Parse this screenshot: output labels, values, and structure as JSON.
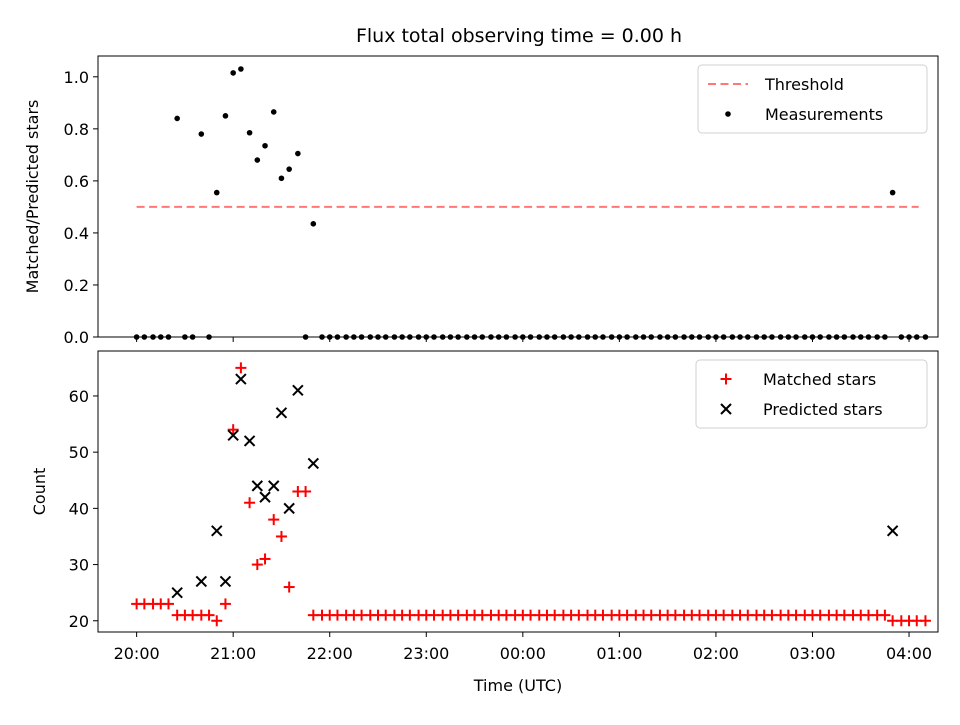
{
  "title": "Flux total observing time = 0.00 h",
  "chart_data": [
    {
      "type": "scatter",
      "panel": "top",
      "ylabel": "Matched/Predicted stars",
      "ylim": [
        0,
        1.08
      ],
      "yticks": [
        "0.0",
        "0.2",
        "0.4",
        "0.6",
        "0.8",
        "1.0"
      ],
      "xlim_hours": [
        19.6,
        28.3
      ],
      "legend_placement": "top-right",
      "threshold": {
        "name": "Threshold",
        "y": 0.5,
        "x": [
          20.0,
          28.1
        ],
        "color": "#ff7777"
      },
      "series": [
        {
          "name": "Measurements",
          "color": "#000000",
          "points": [
            [
              20.0,
              0
            ],
            [
              20.08,
              0
            ],
            [
              20.17,
              0
            ],
            [
              20.25,
              0
            ],
            [
              20.33,
              0
            ],
            [
              20.42,
              0.84
            ],
            [
              20.5,
              0
            ],
            [
              20.58,
              0
            ],
            [
              20.67,
              0.78
            ],
            [
              20.75,
              0
            ],
            [
              20.83,
              0.555
            ],
            [
              20.92,
              0.85
            ],
            [
              21.0,
              1.015
            ],
            [
              21.08,
              1.03
            ],
            [
              21.17,
              0.785
            ],
            [
              21.25,
              0.68
            ],
            [
              21.33,
              0.735
            ],
            [
              21.42,
              0.865
            ],
            [
              21.5,
              0.61
            ],
            [
              21.58,
              0.645
            ],
            [
              21.67,
              0.705
            ],
            [
              21.75,
              0
            ],
            [
              21.83,
              0.435
            ],
            [
              21.92,
              0
            ],
            [
              22.0,
              0
            ],
            [
              22.08,
              0
            ],
            [
              22.17,
              0
            ],
            [
              22.25,
              0
            ],
            [
              22.33,
              0
            ],
            [
              22.42,
              0
            ],
            [
              22.5,
              0
            ],
            [
              22.58,
              0
            ],
            [
              22.67,
              0
            ],
            [
              22.75,
              0
            ],
            [
              22.83,
              0
            ],
            [
              22.92,
              0
            ],
            [
              23.0,
              0
            ],
            [
              23.08,
              0
            ],
            [
              23.17,
              0
            ],
            [
              23.25,
              0
            ],
            [
              23.33,
              0
            ],
            [
              23.42,
              0
            ],
            [
              23.5,
              0
            ],
            [
              23.58,
              0
            ],
            [
              23.67,
              0
            ],
            [
              23.75,
              0
            ],
            [
              23.83,
              0
            ],
            [
              23.92,
              0
            ],
            [
              24.0,
              0
            ],
            [
              24.08,
              0
            ],
            [
              24.17,
              0
            ],
            [
              24.25,
              0
            ],
            [
              24.33,
              0
            ],
            [
              24.42,
              0
            ],
            [
              24.5,
              0
            ],
            [
              24.58,
              0
            ],
            [
              24.67,
              0
            ],
            [
              24.75,
              0
            ],
            [
              24.83,
              0
            ],
            [
              24.92,
              0
            ],
            [
              25.0,
              0
            ],
            [
              25.08,
              0
            ],
            [
              25.17,
              0
            ],
            [
              25.25,
              0
            ],
            [
              25.33,
              0
            ],
            [
              25.42,
              0
            ],
            [
              25.5,
              0
            ],
            [
              25.58,
              0
            ],
            [
              25.67,
              0
            ],
            [
              25.75,
              0
            ],
            [
              25.83,
              0
            ],
            [
              25.92,
              0
            ],
            [
              26.0,
              0
            ],
            [
              26.08,
              0
            ],
            [
              26.17,
              0
            ],
            [
              26.25,
              0
            ],
            [
              26.33,
              0
            ],
            [
              26.42,
              0
            ],
            [
              26.5,
              0
            ],
            [
              26.58,
              0
            ],
            [
              26.67,
              0
            ],
            [
              26.75,
              0
            ],
            [
              26.83,
              0
            ],
            [
              26.92,
              0
            ],
            [
              27.0,
              0
            ],
            [
              27.08,
              0
            ],
            [
              27.17,
              0
            ],
            [
              27.25,
              0
            ],
            [
              27.33,
              0
            ],
            [
              27.42,
              0
            ],
            [
              27.5,
              0
            ],
            [
              27.58,
              0
            ],
            [
              27.67,
              0
            ],
            [
              27.75,
              0
            ],
            [
              27.83,
              0.555
            ],
            [
              27.92,
              0
            ],
            [
              28.0,
              0
            ],
            [
              28.08,
              0
            ],
            [
              28.17,
              0
            ]
          ]
        }
      ]
    },
    {
      "type": "scatter",
      "panel": "bottom",
      "xlabel": "Time (UTC)",
      "ylabel": "Count",
      "ylim": [
        18,
        68
      ],
      "yticks": [
        "20",
        "30",
        "40",
        "50",
        "60"
      ],
      "xlim_hours": [
        19.6,
        28.3
      ],
      "xticks": [
        {
          "hour": 20,
          "label": "20:00"
        },
        {
          "hour": 21,
          "label": "21:00"
        },
        {
          "hour": 22,
          "label": "22:00"
        },
        {
          "hour": 23,
          "label": "23:00"
        },
        {
          "hour": 24,
          "label": "00:00"
        },
        {
          "hour": 25,
          "label": "01:00"
        },
        {
          "hour": 26,
          "label": "02:00"
        },
        {
          "hour": 27,
          "label": "03:00"
        },
        {
          "hour": 28,
          "label": "04:00"
        }
      ],
      "legend_placement": "top-right",
      "series": [
        {
          "name": "Matched stars",
          "marker": "plus",
          "color": "#ff0000",
          "points": [
            [
              20.0,
              23
            ],
            [
              20.08,
              23
            ],
            [
              20.17,
              23
            ],
            [
              20.25,
              23
            ],
            [
              20.33,
              23
            ],
            [
              20.42,
              21
            ],
            [
              20.5,
              21
            ],
            [
              20.58,
              21
            ],
            [
              20.67,
              21
            ],
            [
              20.75,
              21
            ],
            [
              20.83,
              20
            ],
            [
              20.92,
              23
            ],
            [
              21.0,
              54
            ],
            [
              21.08,
              65
            ],
            [
              21.17,
              41
            ],
            [
              21.25,
              30
            ],
            [
              21.33,
              31
            ],
            [
              21.42,
              38
            ],
            [
              21.5,
              35
            ],
            [
              21.58,
              26
            ],
            [
              21.67,
              43
            ],
            [
              21.75,
              43
            ],
            [
              21.83,
              21
            ],
            [
              21.92,
              21
            ],
            [
              22.0,
              21
            ],
            [
              22.08,
              21
            ],
            [
              22.17,
              21
            ],
            [
              22.25,
              21
            ],
            [
              22.33,
              21
            ],
            [
              22.42,
              21
            ],
            [
              22.5,
              21
            ],
            [
              22.58,
              21
            ],
            [
              22.67,
              21
            ],
            [
              22.75,
              21
            ],
            [
              22.83,
              21
            ],
            [
              22.92,
              21
            ],
            [
              23.0,
              21
            ],
            [
              23.08,
              21
            ],
            [
              23.17,
              21
            ],
            [
              23.25,
              21
            ],
            [
              23.33,
              21
            ],
            [
              23.42,
              21
            ],
            [
              23.5,
              21
            ],
            [
              23.58,
              21
            ],
            [
              23.67,
              21
            ],
            [
              23.75,
              21
            ],
            [
              23.83,
              21
            ],
            [
              23.92,
              21
            ],
            [
              24.0,
              21
            ],
            [
              24.08,
              21
            ],
            [
              24.17,
              21
            ],
            [
              24.25,
              21
            ],
            [
              24.33,
              21
            ],
            [
              24.42,
              21
            ],
            [
              24.5,
              21
            ],
            [
              24.58,
              21
            ],
            [
              24.67,
              21
            ],
            [
              24.75,
              21
            ],
            [
              24.83,
              21
            ],
            [
              24.92,
              21
            ],
            [
              25.0,
              21
            ],
            [
              25.08,
              21
            ],
            [
              25.17,
              21
            ],
            [
              25.25,
              21
            ],
            [
              25.33,
              21
            ],
            [
              25.42,
              21
            ],
            [
              25.5,
              21
            ],
            [
              25.58,
              21
            ],
            [
              25.67,
              21
            ],
            [
              25.75,
              21
            ],
            [
              25.83,
              21
            ],
            [
              25.92,
              21
            ],
            [
              26.0,
              21
            ],
            [
              26.08,
              21
            ],
            [
              26.17,
              21
            ],
            [
              26.25,
              21
            ],
            [
              26.33,
              21
            ],
            [
              26.42,
              21
            ],
            [
              26.5,
              21
            ],
            [
              26.58,
              21
            ],
            [
              26.67,
              21
            ],
            [
              26.75,
              21
            ],
            [
              26.83,
              21
            ],
            [
              26.92,
              21
            ],
            [
              27.0,
              21
            ],
            [
              27.08,
              21
            ],
            [
              27.17,
              21
            ],
            [
              27.25,
              21
            ],
            [
              27.33,
              21
            ],
            [
              27.42,
              21
            ],
            [
              27.5,
              21
            ],
            [
              27.58,
              21
            ],
            [
              27.67,
              21
            ],
            [
              27.75,
              21
            ],
            [
              27.83,
              20
            ],
            [
              27.92,
              20
            ],
            [
              28.0,
              20
            ],
            [
              28.08,
              20
            ],
            [
              28.17,
              20
            ]
          ]
        },
        {
          "name": "Predicted stars",
          "marker": "x",
          "color": "#000000",
          "points": [
            [
              20.42,
              25
            ],
            [
              20.67,
              27
            ],
            [
              20.83,
              36
            ],
            [
              20.92,
              27
            ],
            [
              21.0,
              53
            ],
            [
              21.08,
              63
            ],
            [
              21.17,
              52
            ],
            [
              21.25,
              44
            ],
            [
              21.33,
              42
            ],
            [
              21.42,
              44
            ],
            [
              21.5,
              57
            ],
            [
              21.58,
              40
            ],
            [
              21.67,
              61
            ],
            [
              21.83,
              48
            ],
            [
              27.83,
              36
            ]
          ]
        }
      ]
    }
  ]
}
